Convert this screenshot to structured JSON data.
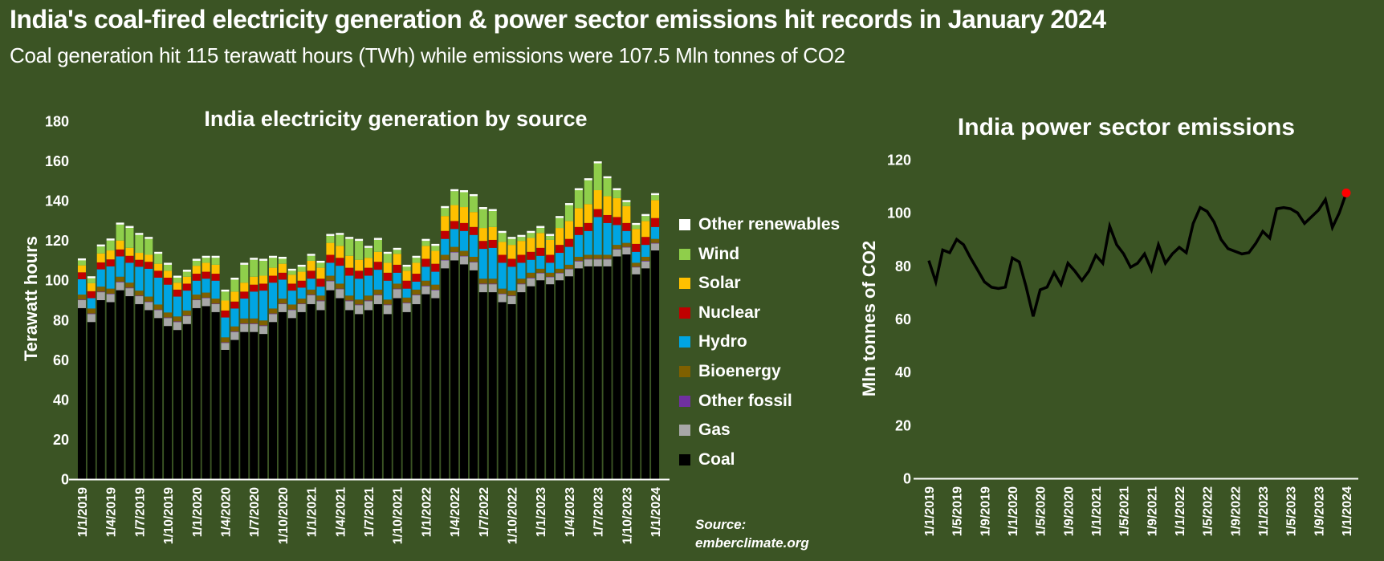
{
  "page": {
    "title": "India's coal-fired electricity generation & power sector emissions hit records in January 2024",
    "subtitle": "Coal generation hit 115 terawatt hours (TWh) while emissions were 107.5 Mln tonnes of CO2",
    "background_color": "#3B5424",
    "text_color": "#FFFFFF"
  },
  "source": {
    "line1": "Source:",
    "line2": "emberclimate.org"
  },
  "chart_data": [
    {
      "type": "bar",
      "stacked": true,
      "title": "India electricity generation by source",
      "ylabel": "Terawatt hours",
      "ylim": [
        0,
        180
      ],
      "ytick_step": 20,
      "n_points": 61,
      "xtick_every": 3,
      "xticklabels": [
        "1/1/2019",
        "1/4/2019",
        "1/7/2019",
        "1/10/2019",
        "1/1/2020",
        "1/4/2020",
        "1/7/2020",
        "1/10/2020",
        "1/1/2021",
        "1/4/2021",
        "1/7/2021",
        "1/10/2021",
        "1/1/2022",
        "1/4/2022",
        "1/7/2022",
        "1/10/2022",
        "1/1/2023",
        "1/4/2023",
        "1/7/2023",
        "1/10/2023",
        "1/1/2024"
      ],
      "legend_top_to_bottom": [
        "Other renewables",
        "Wind",
        "Solar",
        "Nuclear",
        "Hydro",
        "Bioenergy",
        "Other fossil",
        "Gas",
        "Coal"
      ],
      "series": [
        {
          "name": "Coal",
          "color": "#000000",
          "values": [
            86,
            79,
            90,
            89,
            95,
            92,
            88,
            85,
            81,
            77,
            75,
            78,
            86,
            87,
            84,
            65,
            70,
            74,
            74,
            73,
            79,
            84,
            81,
            84,
            88,
            85,
            95,
            91,
            85,
            83,
            85,
            88,
            83,
            91,
            84,
            88,
            93,
            91,
            106,
            110,
            108,
            105,
            94,
            94,
            89,
            88,
            94,
            97,
            100,
            98,
            100,
            102,
            106,
            107,
            107,
            107,
            112,
            113,
            103,
            106,
            115
          ]
        },
        {
          "name": "Gas",
          "color": "#A7A7A7",
          "values": [
            4,
            4,
            4,
            4,
            4,
            4,
            4,
            4,
            4,
            4,
            4,
            4,
            4,
            4,
            4,
            3.5,
            4,
            4,
            4,
            4,
            4,
            4,
            4,
            4,
            4.5,
            4.5,
            4.5,
            4.5,
            4.5,
            4.5,
            4.5,
            4.5,
            4.5,
            4.5,
            4.5,
            4.5,
            4,
            4,
            4,
            4,
            4,
            4,
            4,
            4,
            4,
            4,
            4,
            4,
            3.5,
            3.5,
            3.5,
            3.5,
            3.5,
            3.5,
            3.5,
            3.5,
            3.5,
            3.5,
            3.5,
            3.5,
            3.5
          ]
        },
        {
          "name": "Other fossil",
          "color": "#7030A0",
          "values": [
            0.3,
            0.3,
            0.3,
            0.3,
            0.3,
            0.3,
            0.3,
            0.3,
            0.3,
            0.3,
            0.3,
            0.3,
            0.3,
            0.3,
            0.3,
            0.3,
            0.3,
            0.3,
            0.3,
            0.3,
            0.3,
            0.3,
            0.3,
            0.3,
            0.3,
            0.3,
            0.3,
            0.3,
            0.3,
            0.3,
            0.3,
            0.3,
            0.3,
            0.3,
            0.3,
            0.3,
            0.3,
            0.3,
            0.3,
            0.3,
            0.3,
            0.3,
            0.3,
            0.3,
            0.3,
            0.3,
            0.3,
            0.3,
            0.3,
            0.3,
            0.3,
            0.3,
            0.3,
            0.3,
            0.3,
            0.3,
            0.3,
            0.3,
            0.3,
            0.3,
            0.3
          ]
        },
        {
          "name": "Bioenergy",
          "color": "#7F6000",
          "values": [
            2.5,
            2.5,
            2.5,
            2.5,
            2.5,
            2.5,
            2.5,
            2.5,
            2.5,
            2.5,
            2.5,
            2.5,
            2.5,
            2.5,
            2.5,
            2.5,
            2.5,
            2.5,
            2.5,
            2.5,
            2.5,
            2.5,
            2.5,
            2.5,
            2.5,
            2.5,
            2.5,
            2.5,
            2.5,
            2.5,
            2.5,
            2.5,
            2.5,
            2.5,
            2.5,
            2.5,
            2.5,
            2.5,
            2.5,
            2.5,
            2.5,
            2.5,
            2.5,
            2.5,
            2.5,
            2.5,
            2.5,
            2.5,
            2,
            2,
            2,
            2,
            2,
            2,
            2,
            2,
            2,
            2,
            2,
            2,
            2
          ]
        },
        {
          "name": "Hydro",
          "color": "#00A5E3",
          "values": [
            7.7,
            5.2,
            8.7,
            11.2,
            10.2,
            10,
            12,
            14,
            13.5,
            14,
            10,
            10,
            7,
            7,
            9,
            10,
            9,
            10,
            13.5,
            15,
            13,
            9.5,
            7,
            5.5,
            5.5,
            4.5,
            6.5,
            9,
            10,
            10.5,
            10,
            10,
            9.5,
            5.5,
            4.5,
            4,
            7,
            6.5,
            8,
            9,
            10,
            11,
            15,
            15.5,
            13,
            12,
            8,
            6.5,
            6.5,
            5,
            8,
            9,
            11,
            12,
            19,
            16,
            10,
            6,
            5.5,
            6,
            6
          ]
        },
        {
          "name": "Nuclear",
          "color": "#C00000",
          "values": [
            3.5,
            3.5,
            3.5,
            3.5,
            3.5,
            3.5,
            3.5,
            3.5,
            3.5,
            3.5,
            3.5,
            3.5,
            3.5,
            3.5,
            3.5,
            3.5,
            3.5,
            3.5,
            3.5,
            3.5,
            3.5,
            3.5,
            3.5,
            3.5,
            4,
            4,
            4,
            4,
            4,
            4,
            4,
            4,
            4,
            4,
            4,
            4,
            4,
            4,
            4,
            4,
            4,
            4,
            4,
            4,
            4,
            4,
            4,
            4,
            4,
            4,
            4,
            4,
            4,
            4,
            4,
            4,
            4,
            4,
            4,
            4,
            4.5
          ]
        },
        {
          "name": "Solar",
          "color": "#FFC000",
          "values": [
            3.5,
            4,
            4.5,
            4.5,
            4.5,
            4,
            3.5,
            3.5,
            3.5,
            3.5,
            3.5,
            3.5,
            4,
            4.5,
            4.5,
            5,
            5,
            4.5,
            4,
            4,
            4,
            4.5,
            4.5,
            4.5,
            5,
            5.5,
            6,
            6,
            6,
            5.5,
            5,
            5,
            5,
            5.5,
            5,
            5.5,
            6.5,
            6.5,
            7.5,
            8,
            8,
            7.5,
            6.5,
            6.5,
            6.5,
            7,
            7,
            7,
            7.5,
            7.5,
            8.5,
            9,
            9.5,
            9.5,
            9.5,
            9.5,
            9.5,
            8.5,
            7.5,
            8,
            9
          ]
        },
        {
          "name": "Wind",
          "color": "#8FCE4B",
          "values": [
            2.5,
            2.5,
            3.5,
            5,
            8,
            10,
            9,
            8,
            5,
            3,
            2.5,
            2.5,
            2.5,
            2.5,
            3.5,
            4.5,
            6,
            9,
            8.5,
            7.5,
            5,
            2.5,
            2,
            2.5,
            2.5,
            2.5,
            3.5,
            5.5,
            8.5,
            9.5,
            5,
            6,
            4.5,
            2,
            2,
            2.5,
            2.5,
            2.5,
            4,
            7,
            7.5,
            8,
            9.5,
            8,
            4.5,
            3,
            2,
            2.5,
            2.5,
            2,
            5,
            8,
            9,
            12,
            13.5,
            9,
            4,
            2,
            2,
            2.5,
            2.5
          ]
        },
        {
          "name": "Other renewables",
          "color": "#FFFFFF",
          "values": [
            1,
            1,
            1,
            1,
            1,
            1,
            1,
            1,
            1,
            1,
            1,
            1,
            1,
            1,
            1,
            1,
            1,
            1,
            1,
            1,
            1,
            1,
            1,
            1,
            1,
            1,
            1,
            1,
            1,
            1,
            1,
            1,
            1,
            1,
            1,
            1,
            1,
            1,
            1,
            1,
            1,
            1,
            1,
            1,
            1,
            1,
            1,
            1,
            1,
            1,
            1,
            1,
            1,
            1,
            1,
            1,
            1,
            1,
            1,
            1,
            1
          ]
        }
      ]
    },
    {
      "type": "line",
      "title": "India power sector emissions",
      "ylabel": "Mln tonnes of CO2",
      "ylim": [
        0,
        120
      ],
      "ytick_step": 20,
      "n_points": 61,
      "xtick_every": 4,
      "xticklabels": [
        "1/1/2019",
        "1/5/2019",
        "1/9/2019",
        "1/1/2020",
        "1/5/2020",
        "1/9/2020",
        "1/1/2021",
        "1/5/2021",
        "1/9/2021",
        "1/1/2022",
        "1/5/2022",
        "1/9/2022",
        "1/1/2023",
        "1/5/2023",
        "1/9/2023",
        "1/1/2024"
      ],
      "line_color": "#000000",
      "last_point_color": "#FF0000",
      "last_point_value": 107.5,
      "values": [
        82,
        74,
        86,
        85,
        90,
        88,
        83,
        78.5,
        74,
        72,
        71.5,
        72,
        83,
        81.5,
        72,
        61,
        71,
        72,
        77.5,
        73,
        81,
        78,
        74.5,
        78,
        84,
        81,
        95,
        88,
        84.5,
        79.5,
        81,
        84.5,
        78.5,
        88,
        81,
        84.5,
        87,
        85,
        96,
        102,
        100.5,
        96.5,
        90,
        86.5,
        85.5,
        84.5,
        85,
        88.5,
        93,
        90.5,
        101.5,
        102,
        101.5,
        100,
        96,
        98.5,
        101,
        105,
        94.5,
        100,
        107.5
      ]
    }
  ]
}
